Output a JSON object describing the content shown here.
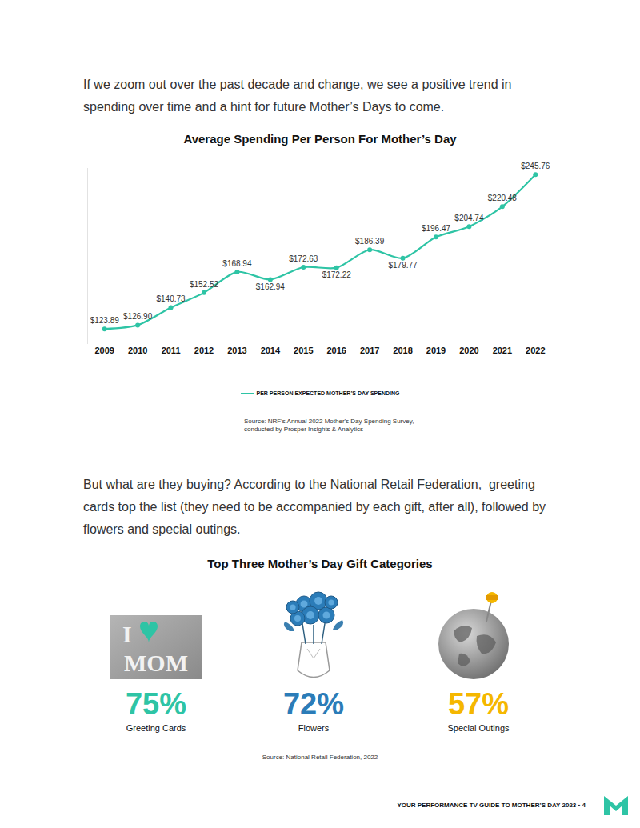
{
  "intro": "If we zoom out over the past decade and change, we see a positive trend in spending over time and a hint for future Mother’s Days to come.",
  "chart_data": {
    "type": "line",
    "title": "Average Spending Per Person For Mother’s Day",
    "categories": [
      "2009",
      "2010",
      "2011",
      "2012",
      "2013",
      "2014",
      "2015",
      "2016",
      "2017",
      "2018",
      "2019",
      "2020",
      "2021",
      "2022"
    ],
    "series": [
      {
        "name": "PER PERSON EXPECTED MOTHER’S DAY SPENDING",
        "color": "#2ec4a5",
        "values": [
          123.89,
          126.9,
          140.73,
          152.52,
          168.94,
          162.94,
          172.63,
          172.22,
          186.39,
          179.77,
          196.47,
          204.74,
          220.48,
          245.76
        ],
        "value_labels": [
          "$123.89",
          "$126.90",
          "$140.73",
          "$152.52",
          "$168.94",
          "$162.94",
          "$172.63",
          "$172.22",
          "$186.39",
          "$179.77",
          "$196.47",
          "$204.74",
          "$220.48",
          "$245.76"
        ]
      }
    ],
    "ylim": [
      112,
      251
    ],
    "tick_labels": "x",
    "grid": false,
    "data_labels": true,
    "legend": "bottom",
    "marker": "circle",
    "source": "Source: NRF's Annual 2022 Mother's Day Spending Survey, conducted by Prosper Insights & Analytics"
  },
  "body": "But what are they buying? According to the National Retail Federation,  greeting cards top the list (they need to be accompanied by each gift, after all), followed by flowers and special outings.",
  "gift_categories": {
    "title": "Top Three Mother’s Day Gift Categories",
    "items": [
      {
        "label": "Greeting Cards",
        "value": "75%",
        "color": "#2ec4a5",
        "icon_text": [
          "I",
          "MOM"
        ]
      },
      {
        "label": "Flowers",
        "value": "72%",
        "color": "#2b7cb8"
      },
      {
        "label": "Special Outings",
        "value": "57%",
        "color": "#f5b700"
      }
    ],
    "source": "Source: National Retail Federation, 2022"
  },
  "footer": "YOUR PERFORMANCE TV GUIDE TO MOTHER’S DAY 2023 • 4"
}
